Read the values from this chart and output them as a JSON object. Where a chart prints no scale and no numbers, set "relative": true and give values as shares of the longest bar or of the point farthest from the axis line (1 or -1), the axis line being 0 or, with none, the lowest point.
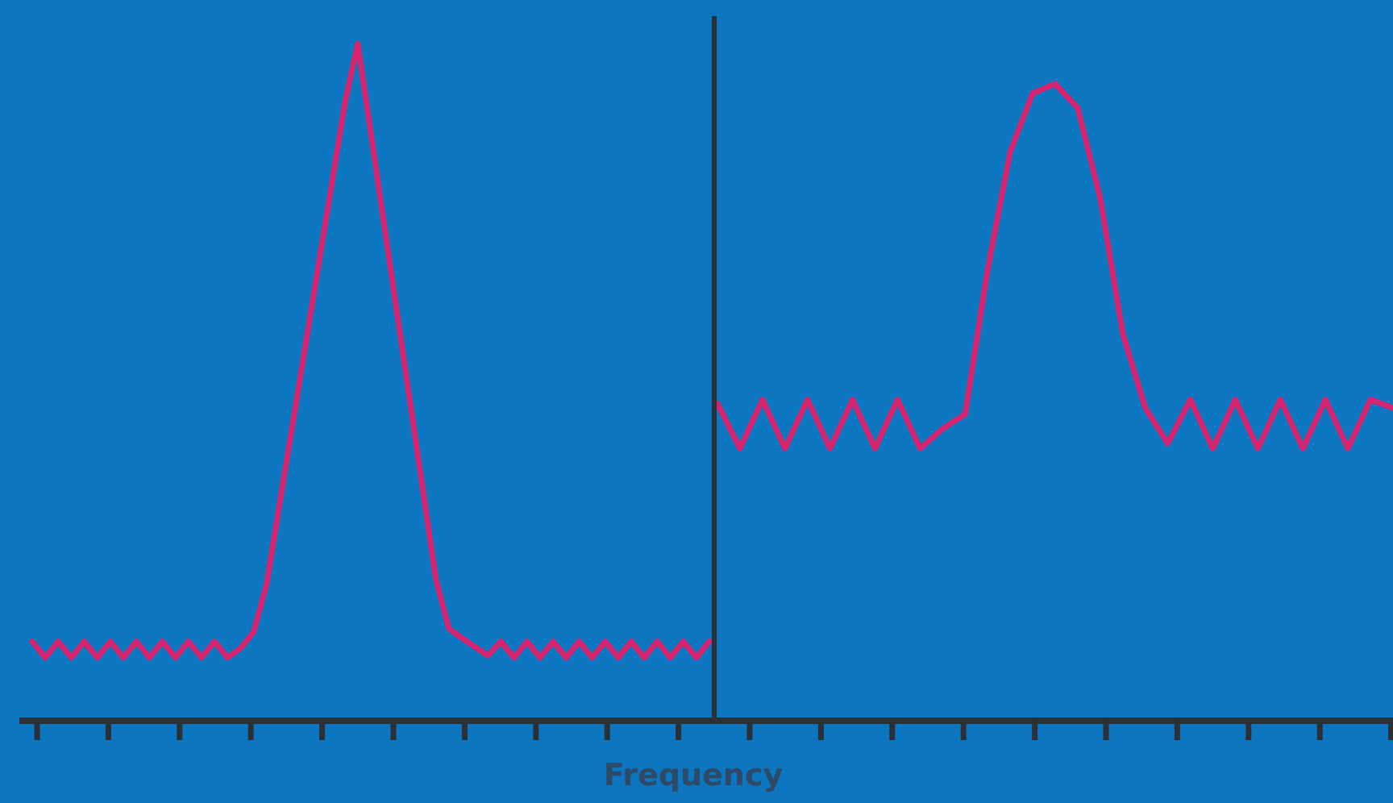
{
  "chart_data": [
    {
      "type": "line",
      "xlabel": "Frequency",
      "relative": true,
      "legend": false,
      "marker": "none",
      "line_style": "solid",
      "categories": [
        null,
        null,
        null,
        null,
        null,
        null,
        null,
        null,
        null,
        null,
        null,
        null,
        null,
        null,
        null,
        null,
        null,
        null,
        null,
        null,
        null,
        null,
        null,
        null,
        null,
        null,
        null,
        null,
        null,
        null,
        null,
        null,
        null,
        null,
        null,
        null,
        null,
        null,
        null,
        null,
        null,
        null,
        null,
        null,
        null,
        null,
        null,
        null,
        null,
        null,
        null,
        null,
        null
      ],
      "series": [
        {
          "color": "#d6246e",
          "values": [
            0.115,
            0.091,
            0.115,
            0.091,
            0.115,
            0.091,
            0.115,
            0.091,
            0.115,
            0.091,
            0.115,
            0.091,
            0.115,
            0.091,
            0.115,
            0.091,
            0.105,
            0.129,
            0.2,
            0.319,
            0.437,
            0.556,
            0.674,
            0.792,
            0.911,
            1,
            0.868,
            0.735,
            0.603,
            0.471,
            0.339,
            0.207,
            0.134,
            0.12,
            0.107,
            0.094,
            0.115,
            0.091,
            0.115,
            0.091,
            0.115,
            0.091,
            0.115,
            0.091,
            0.115,
            0.091,
            0.115,
            0.091,
            0.115,
            0.091,
            0.115,
            0.091,
            0.115
          ]
        }
      ]
    },
    {
      "type": "line",
      "relative": true,
      "legend": false,
      "marker": "none",
      "line_style": "solid",
      "categories": [
        null,
        null,
        null,
        null,
        null,
        null,
        null,
        null,
        null,
        null,
        null,
        null,
        null,
        null,
        null,
        null,
        null,
        null,
        null,
        null,
        null,
        null,
        null,
        null,
        null,
        null,
        null,
        null,
        null,
        null,
        null
      ],
      "series": [
        {
          "color": "#d6246e",
          "values": [
            0.497,
            0.426,
            0.503,
            0.426,
            0.503,
            0.426,
            0.503,
            0.426,
            0.503,
            0.426,
            0.457,
            0.48,
            0.708,
            0.893,
            0.985,
            1,
            0.962,
            0.82,
            0.607,
            0.49,
            0.434,
            0.503,
            0.426,
            0.503,
            0.426,
            0.503,
            0.426,
            0.503,
            0.426,
            0.503,
            0.49
          ]
        }
      ]
    }
  ]
}
